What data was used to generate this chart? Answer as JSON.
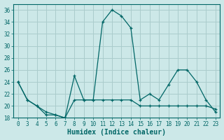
{
  "xlabel": "Humidex (Indice chaleur)",
  "background_color": "#cce8e8",
  "grid_color": "#aacccc",
  "line_color": "#006666",
  "x_labels": [
    "0",
    "3",
    "4",
    "5",
    "6",
    "7",
    "8",
    "9",
    "10",
    "11",
    "12",
    "13",
    "14",
    "15",
    "16",
    "17",
    "18",
    "19",
    "20",
    "21",
    "22",
    "23"
  ],
  "y_upper": [
    24,
    21,
    20,
    19,
    18.5,
    18,
    25,
    21,
    21,
    34,
    36,
    35,
    33,
    21,
    22,
    21,
    23.5,
    26,
    26,
    24,
    21,
    19
  ],
  "y_lower": [
    24,
    21,
    20,
    18.5,
    18.5,
    18,
    21,
    21,
    21,
    21,
    21,
    21,
    21,
    20,
    20,
    20,
    20,
    20,
    20,
    20,
    20,
    19.5
  ],
  "ylim": [
    18,
    37
  ],
  "yticks": [
    18,
    20,
    22,
    24,
    26,
    28,
    30,
    32,
    34,
    36
  ],
  "label_fontsize": 7,
  "tick_fontsize": 5.5
}
